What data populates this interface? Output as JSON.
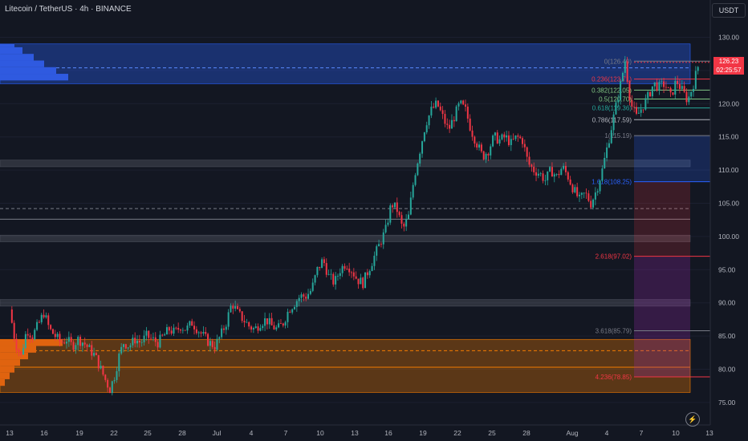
{
  "header": {
    "title": "Litecoin / TetherUS · 4h · BINANCE"
  },
  "axis_unit": "USDT",
  "last_price": {
    "value": "126.23",
    "countdown": "02:25:57"
  },
  "chart_data": {
    "type": "candlestick",
    "symbol": "LTCUSDT",
    "ylim": [
      74,
      132
    ],
    "y_ticks": [
      "130.00",
      "125.00",
      "120.00",
      "115.00",
      "110.00",
      "105.00",
      "100.00",
      "95.00",
      "90.00",
      "85.00",
      "80.00",
      "75.00"
    ],
    "x_ticks": [
      "13",
      "16",
      "19",
      "22",
      "25",
      "28",
      "Jul",
      "4",
      "7",
      "10",
      "13",
      "16",
      "19",
      "22",
      "25",
      "28",
      "Aug",
      "4",
      "7",
      "10",
      "13"
    ],
    "close_path": [
      [
        0,
        89
      ],
      [
        0.5,
        84
      ],
      [
        1,
        82
      ],
      [
        1.5,
        86
      ],
      [
        2,
        85
      ],
      [
        2.6,
        87
      ],
      [
        3,
        88.5
      ],
      [
        3.5,
        86
      ],
      [
        4,
        85
      ],
      [
        4.5,
        84
      ],
      [
        5,
        84.5
      ],
      [
        5.5,
        83.5
      ],
      [
        6,
        84.5
      ],
      [
        6.5,
        84
      ],
      [
        7,
        83
      ],
      [
        7.5,
        82
      ],
      [
        8,
        80
      ],
      [
        8.5,
        78
      ],
      [
        8.8,
        77
      ],
      [
        9.2,
        79
      ],
      [
        9.6,
        82
      ],
      [
        10,
        84
      ],
      [
        10.5,
        83.5
      ],
      [
        11,
        84.5
      ],
      [
        11.5,
        84
      ],
      [
        12,
        85
      ],
      [
        12.5,
        84.5
      ],
      [
        13,
        84
      ],
      [
        13.5,
        85
      ],
      [
        14,
        86
      ],
      [
        14.5,
        85.5
      ],
      [
        15,
        86.5
      ],
      [
        15.5,
        86
      ],
      [
        16,
        87
      ],
      [
        16.5,
        86
      ],
      [
        17,
        85
      ],
      [
        17.5,
        84
      ],
      [
        18,
        83.5
      ],
      [
        18.5,
        85
      ],
      [
        19,
        87
      ],
      [
        19.5,
        90
      ],
      [
        20,
        88.5
      ],
      [
        20.5,
        87.5
      ],
      [
        21,
        86.5
      ],
      [
        21.5,
        86
      ],
      [
        22,
        87
      ],
      [
        22.5,
        87.5
      ],
      [
        23,
        86.5
      ],
      [
        23.5,
        86
      ],
      [
        24,
        87
      ],
      [
        24.5,
        89
      ],
      [
        25,
        90
      ],
      [
        25.5,
        91
      ],
      [
        26,
        91
      ],
      [
        26.5,
        92
      ],
      [
        27,
        95
      ],
      [
        27.5,
        96.5
      ],
      [
        28,
        94
      ],
      [
        28.5,
        93
      ],
      [
        29,
        95
      ],
      [
        29.5,
        96
      ],
      [
        30,
        95
      ],
      [
        30.5,
        93.5
      ],
      [
        31,
        93
      ],
      [
        31.5,
        95
      ],
      [
        32,
        97
      ],
      [
        32.5,
        99
      ],
      [
        33,
        101
      ],
      [
        33.5,
        105
      ],
      [
        34,
        104
      ],
      [
        34.5,
        101
      ],
      [
        35,
        103
      ],
      [
        35.5,
        109
      ],
      [
        36,
        113
      ],
      [
        36.5,
        117
      ],
      [
        37,
        119
      ],
      [
        37.5,
        120
      ],
      [
        38,
        118
      ],
      [
        38.5,
        116
      ],
      [
        39,
        118
      ],
      [
        39.5,
        120
      ],
      [
        40,
        119
      ],
      [
        40.5,
        116
      ],
      [
        41,
        114
      ],
      [
        41.5,
        112
      ],
      [
        42,
        113
      ],
      [
        42.5,
        115
      ],
      [
        43,
        114.5
      ],
      [
        43.5,
        115
      ],
      [
        44,
        114
      ],
      [
        44.5,
        115
      ],
      [
        45,
        114.5
      ],
      [
        45.5,
        111
      ],
      [
        46,
        110
      ],
      [
        46.5,
        109.5
      ],
      [
        47,
        108.5
      ],
      [
        47.5,
        110
      ],
      [
        48,
        109
      ],
      [
        48.5,
        110.5
      ],
      [
        49,
        109
      ],
      [
        49.5,
        107
      ],
      [
        50,
        105.5
      ],
      [
        50.5,
        106.5
      ],
      [
        51,
        105
      ],
      [
        51.5,
        107
      ],
      [
        52,
        110
      ],
      [
        52.5,
        114
      ],
      [
        53,
        118
      ],
      [
        53.5,
        122
      ],
      [
        54,
        126.5
      ],
      [
        54.5,
        120
      ],
      [
        55,
        118
      ],
      [
        55.5,
        119.5
      ],
      [
        56,
        121
      ],
      [
        56.5,
        123
      ],
      [
        57,
        122.5
      ],
      [
        57.5,
        123
      ],
      [
        58,
        121
      ],
      [
        58.5,
        123.5
      ],
      [
        59,
        122
      ],
      [
        59.5,
        120.5
      ],
      [
        60,
        123
      ],
      [
        60.5,
        126.23
      ]
    ],
    "fib_levels": [
      {
        "ratio": "0",
        "price": 126.4,
        "label": "0(126.40)"
      },
      {
        "ratio": "0.236",
        "price": 123.71,
        "label": "0.236(123.71)"
      },
      {
        "ratio": "0.382",
        "price": 122.05,
        "label": "0.382(122.05)"
      },
      {
        "ratio": "0.5",
        "price": 120.7,
        "label": "0.5(120.70)"
      },
      {
        "ratio": "0.618",
        "price": 119.36,
        "label": "0.618(119.36)"
      },
      {
        "ratio": "0.786",
        "price": 117.59,
        "label": "0.786(117.59)"
      },
      {
        "ratio": "1",
        "price": 115.19,
        "label": "1(115.19)"
      },
      {
        "ratio": "1.618",
        "price": 108.25,
        "label": "1.618(108.25)"
      },
      {
        "ratio": "2.618",
        "price": 97.02,
        "label": "2.618(97.02)"
      },
      {
        "ratio": "3.618",
        "price": 85.79,
        "label": "3.618(85.79)"
      },
      {
        "ratio": "4.236",
        "price": 78.85,
        "label": "4.236(78.85)"
      }
    ],
    "zones": [
      {
        "kind": "supply",
        "from": 123,
        "to": 129
      },
      {
        "kind": "support",
        "from": 110.5,
        "to": 111.5
      },
      {
        "kind": "support",
        "from": 99.2,
        "to": 100.2
      },
      {
        "kind": "support",
        "from": 89.5,
        "to": 90.5
      },
      {
        "kind": "demand",
        "from": 76.5,
        "to": 84.5
      }
    ],
    "colors": {
      "up": "#26a69a",
      "down": "#f23645",
      "background": "#131722",
      "fib_blue": "#2962ff",
      "fib_red": "#f23645"
    }
  }
}
